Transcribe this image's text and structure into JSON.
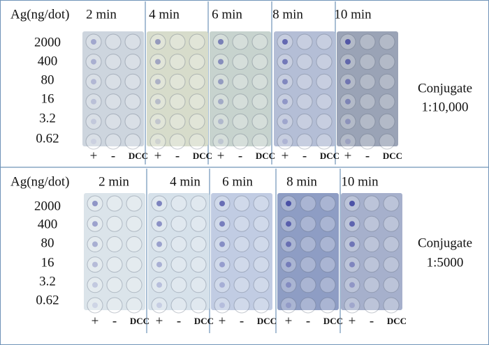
{
  "panels": [
    {
      "header": "Ag(ng/dot)",
      "times": [
        "2 min",
        "4 min",
        "6 min",
        "8 min",
        "10 min"
      ],
      "concentrations": [
        "2000",
        "400",
        "80",
        "16",
        "3.2",
        "0.62"
      ],
      "columns": [
        "+",
        "-",
        "DCC"
      ],
      "conjugate": [
        "Conjugate",
        "1:10,000"
      ]
    },
    {
      "header": "Ag(ng/dot)",
      "times": [
        "2 min",
        "4 min",
        "6 min",
        "8 min",
        "10 min"
      ],
      "concentrations": [
        "2000",
        "400",
        "80",
        "16",
        "3.2",
        "0.62"
      ],
      "columns": [
        "+",
        "-",
        "DCC"
      ],
      "conjugate": [
        "Conjugate",
        "1:5000"
      ]
    }
  ]
}
